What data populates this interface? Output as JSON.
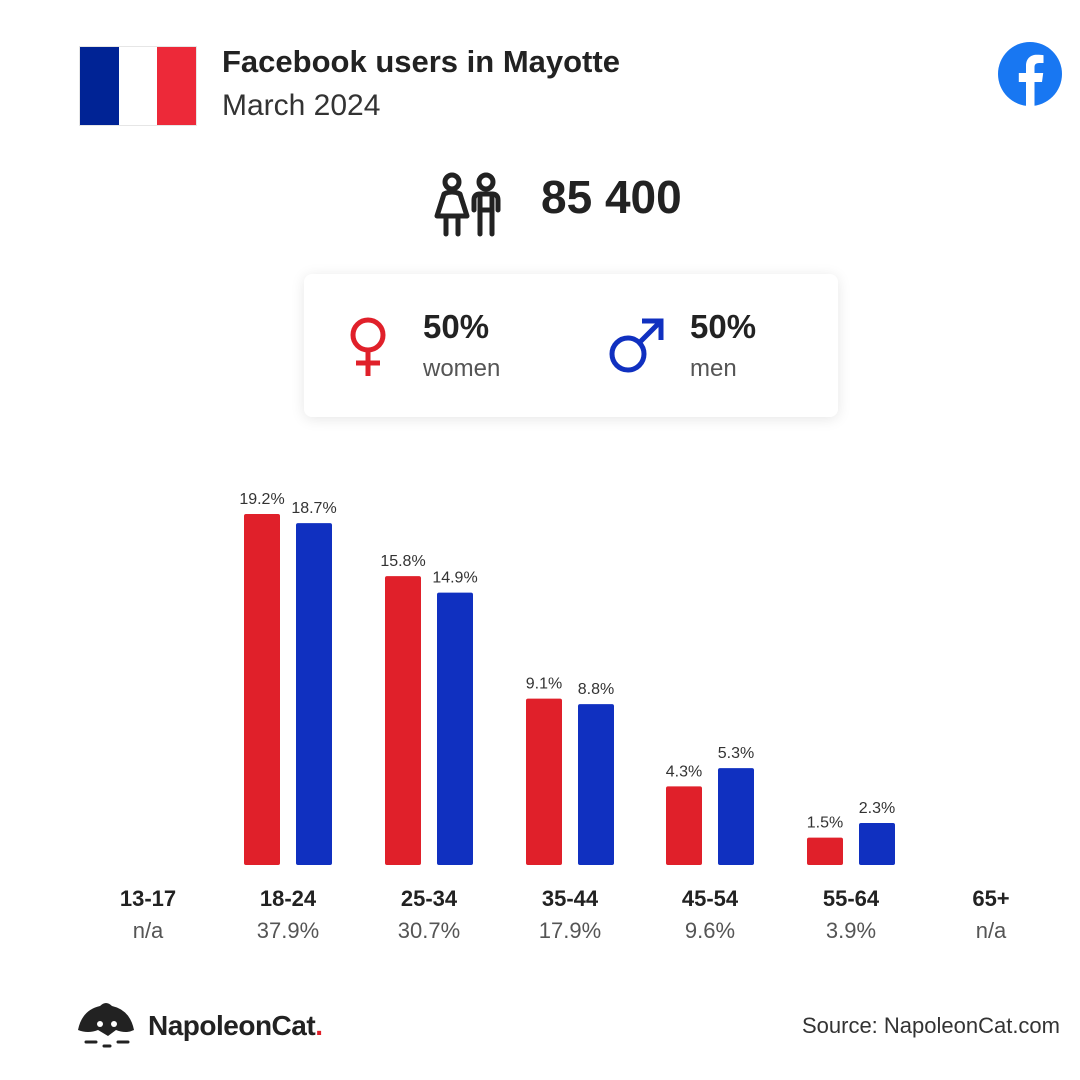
{
  "header": {
    "title": "Facebook users in Mayotte",
    "subtitle": "March 2024",
    "flag_colors": [
      "#002395",
      "#ffffff",
      "#ed2939"
    ],
    "social_icon": "facebook-icon"
  },
  "summary": {
    "total_users": "85 400",
    "icon": "people-icon"
  },
  "gender": {
    "women": {
      "percent": "50%",
      "label": "women",
      "color": "#e0202a",
      "icon": "female-symbol-icon"
    },
    "men": {
      "percent": "50%",
      "label": "men",
      "color": "#1030c0",
      "icon": "male-symbol-icon"
    }
  },
  "chart_data": {
    "type": "bar",
    "categories": [
      "13-17",
      "18-24",
      "25-34",
      "35-44",
      "45-54",
      "55-64",
      "65+"
    ],
    "category_totals": [
      "n/a",
      "37.9%",
      "30.7%",
      "17.9%",
      "9.6%",
      "3.9%",
      "n/a"
    ],
    "series": [
      {
        "name": "women",
        "color": "#e0202a",
        "values": [
          null,
          19.2,
          15.8,
          9.1,
          4.3,
          1.5,
          null
        ],
        "labels": [
          "",
          "19.2%",
          "15.8%",
          "9.1%",
          "4.3%",
          "1.5%",
          ""
        ]
      },
      {
        "name": "men",
        "color": "#1030c0",
        "values": [
          null,
          18.7,
          14.9,
          8.8,
          5.3,
          2.3,
          null
        ],
        "labels": [
          "",
          "18.7%",
          "14.9%",
          "8.8%",
          "5.3%",
          "2.3%",
          ""
        ]
      }
    ],
    "ylim": [
      0,
      19.2
    ],
    "grid": false,
    "legend": "none"
  },
  "footer": {
    "brand": "NapoleonCat",
    "brand_dot": ".",
    "source": "Source: NapoleonCat.com",
    "logo_icon": "napoleoncat-logo-icon"
  }
}
